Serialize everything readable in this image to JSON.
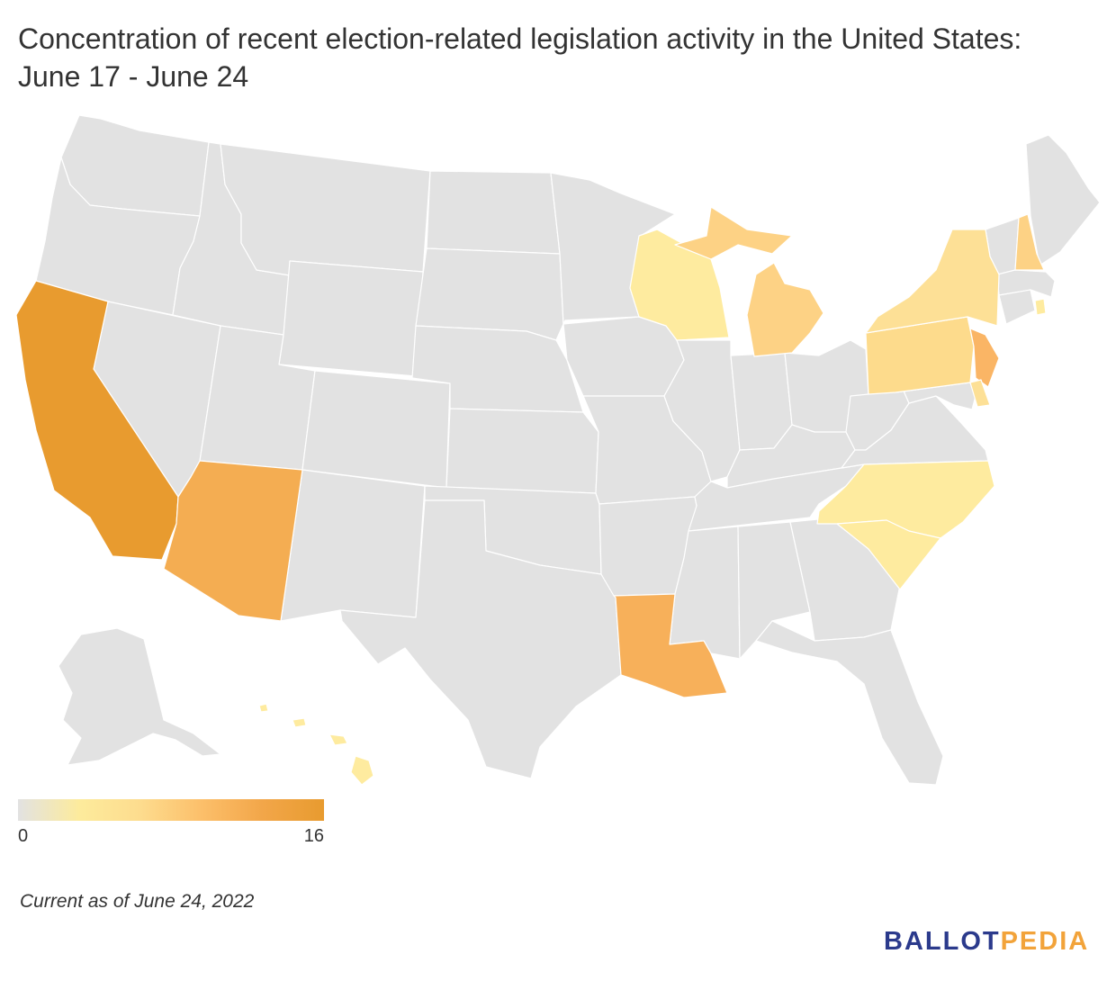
{
  "title": "Concentration of recent election-related legislation activity in the United States: June 17 - June 24",
  "legend": {
    "min": "0",
    "max": "16",
    "colors": [
      "#e2e2e2",
      "#fdeb9c",
      "#fddc8e",
      "#fcbf6a",
      "#f2a649",
      "#e89b2f"
    ]
  },
  "note": "Current as of June 24, 2022",
  "brand": {
    "part1": "BALLOT",
    "part2": "PEDIA",
    "color1": "#2b3a8c",
    "color2": "#f2a33a"
  },
  "map": {
    "default_color": "#e2e2e2",
    "highlighted_states": [
      {
        "state": "California",
        "color": "#e89b2f"
      },
      {
        "state": "Arizona",
        "color": "#f4ad52"
      },
      {
        "state": "Louisiana",
        "color": "#f7b05a"
      },
      {
        "state": "New Jersey",
        "color": "#fab565"
      },
      {
        "state": "Michigan",
        "color": "#fdd285"
      },
      {
        "state": "New Hampshire",
        "color": "#fdd285"
      },
      {
        "state": "Pennsylvania",
        "color": "#fddb8c"
      },
      {
        "state": "New York",
        "color": "#fde096"
      },
      {
        "state": "Delaware",
        "color": "#fde096"
      },
      {
        "state": "Wisconsin",
        "color": "#feeb9f"
      },
      {
        "state": "North Carolina",
        "color": "#feeb9f"
      },
      {
        "state": "South Carolina",
        "color": "#feeb9f"
      },
      {
        "state": "Rhode Island",
        "color": "#feeb9f"
      },
      {
        "state": "Hawaii",
        "color": "#feeb9f"
      }
    ]
  }
}
